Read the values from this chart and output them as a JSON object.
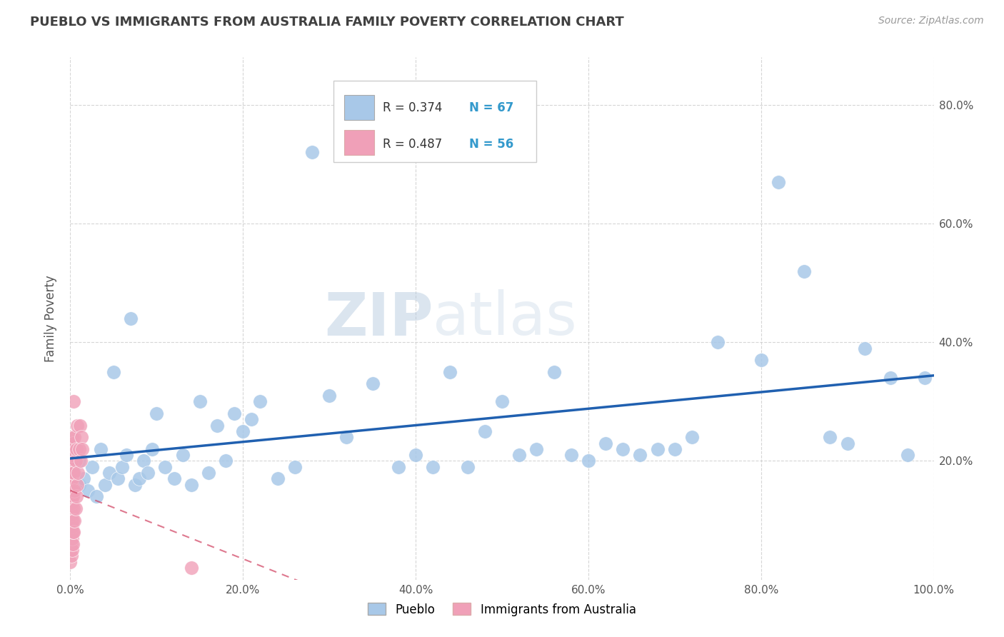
{
  "title": "PUEBLO VS IMMIGRANTS FROM AUSTRALIA FAMILY POVERTY CORRELATION CHART",
  "source_text": "Source: ZipAtlas.com",
  "ylabel": "Family Poverty",
  "R_blue": 0.374,
  "N_blue": 67,
  "R_pink": 0.487,
  "N_pink": 56,
  "blue_color": "#A8C8E8",
  "pink_color": "#F0A0B8",
  "blue_line_color": "#2060B0",
  "pink_line_color": "#D04060",
  "pink_line_dashed": true,
  "watermark_zip": "ZIP",
  "watermark_atlas": "atlas",
  "xlim": [
    0.0,
    1.0
  ],
  "ylim": [
    0.0,
    0.88
  ],
  "xticks": [
    0.0,
    0.2,
    0.4,
    0.6,
    0.8,
    1.0
  ],
  "yticks": [
    0.2,
    0.4,
    0.6,
    0.8
  ],
  "xticklabels": [
    "0.0%",
    "20.0%",
    "40.0%",
    "60.0%",
    "80.0%",
    "100.0%"
  ],
  "yticklabels_right": [
    "20.0%",
    "40.0%",
    "60.0%",
    "80.0%"
  ],
  "blue_scatter_x": [
    0.005,
    0.01,
    0.01,
    0.015,
    0.02,
    0.025,
    0.03,
    0.035,
    0.04,
    0.045,
    0.05,
    0.055,
    0.06,
    0.065,
    0.07,
    0.075,
    0.08,
    0.085,
    0.09,
    0.095,
    0.1,
    0.11,
    0.12,
    0.13,
    0.14,
    0.15,
    0.16,
    0.17,
    0.18,
    0.19,
    0.2,
    0.21,
    0.22,
    0.24,
    0.26,
    0.28,
    0.3,
    0.32,
    0.35,
    0.38,
    0.4,
    0.42,
    0.44,
    0.46,
    0.48,
    0.5,
    0.52,
    0.54,
    0.56,
    0.58,
    0.6,
    0.62,
    0.64,
    0.66,
    0.68,
    0.7,
    0.72,
    0.75,
    0.8,
    0.82,
    0.85,
    0.88,
    0.9,
    0.92,
    0.95,
    0.97,
    0.99
  ],
  "blue_scatter_y": [
    0.18,
    0.2,
    0.16,
    0.17,
    0.15,
    0.19,
    0.14,
    0.22,
    0.16,
    0.18,
    0.35,
    0.17,
    0.19,
    0.21,
    0.44,
    0.16,
    0.17,
    0.2,
    0.18,
    0.22,
    0.28,
    0.19,
    0.17,
    0.21,
    0.16,
    0.3,
    0.18,
    0.26,
    0.2,
    0.28,
    0.25,
    0.27,
    0.3,
    0.17,
    0.19,
    0.72,
    0.31,
    0.24,
    0.33,
    0.19,
    0.21,
    0.19,
    0.35,
    0.19,
    0.25,
    0.3,
    0.21,
    0.22,
    0.35,
    0.21,
    0.2,
    0.23,
    0.22,
    0.21,
    0.22,
    0.22,
    0.24,
    0.4,
    0.37,
    0.67,
    0.52,
    0.24,
    0.23,
    0.39,
    0.34,
    0.21,
    0.34
  ],
  "pink_scatter_x": [
    0.0,
    0.0,
    0.0,
    0.0,
    0.0,
    0.0,
    0.0,
    0.0,
    0.0,
    0.0,
    0.001,
    0.001,
    0.001,
    0.001,
    0.001,
    0.001,
    0.001,
    0.001,
    0.001,
    0.001,
    0.002,
    0.002,
    0.002,
    0.002,
    0.002,
    0.002,
    0.002,
    0.002,
    0.002,
    0.002,
    0.003,
    0.003,
    0.003,
    0.003,
    0.003,
    0.003,
    0.004,
    0.004,
    0.004,
    0.004,
    0.005,
    0.005,
    0.005,
    0.006,
    0.006,
    0.007,
    0.007,
    0.008,
    0.008,
    0.009,
    0.01,
    0.011,
    0.012,
    0.013,
    0.014,
    0.14
  ],
  "pink_scatter_y": [
    0.03,
    0.05,
    0.06,
    0.08,
    0.1,
    0.12,
    0.14,
    0.16,
    0.18,
    0.2,
    0.04,
    0.06,
    0.08,
    0.1,
    0.12,
    0.14,
    0.16,
    0.18,
    0.2,
    0.22,
    0.05,
    0.07,
    0.09,
    0.11,
    0.13,
    0.15,
    0.17,
    0.19,
    0.21,
    0.24,
    0.06,
    0.08,
    0.1,
    0.14,
    0.18,
    0.23,
    0.08,
    0.12,
    0.18,
    0.3,
    0.1,
    0.15,
    0.24,
    0.12,
    0.2,
    0.14,
    0.22,
    0.16,
    0.26,
    0.18,
    0.22,
    0.26,
    0.2,
    0.24,
    0.22,
    0.02
  ],
  "legend_blue_label": "Pueblo",
  "legend_pink_label": "Immigrants from Australia",
  "background_color": "#FFFFFF",
  "grid_color": "#CCCCCC",
  "title_color": "#404040",
  "axis_label_color": "#555555",
  "tick_color": "#555555",
  "source_color": "#999999",
  "legend_R_color": "#333333",
  "legend_N_color": "#3399CC"
}
